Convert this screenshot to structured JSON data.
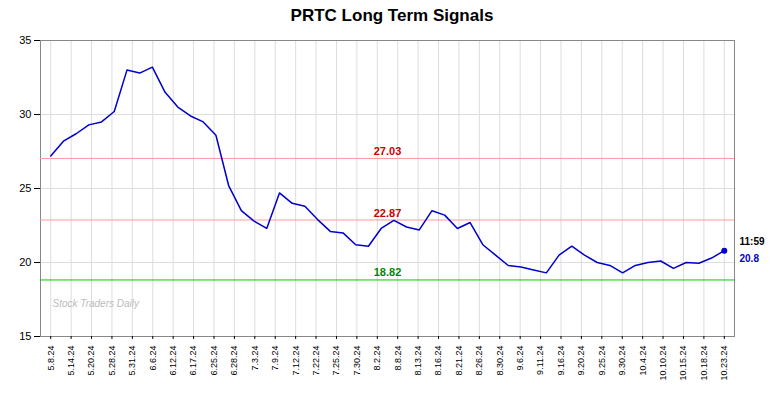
{
  "chart_data": {
    "type": "line",
    "title": "PRTC Long Term Signals",
    "color": "#0000cc",
    "marker": "o",
    "grid": true,
    "x": [
      0,
      0.622642,
      1.245283,
      1.867925,
      2.490566,
      3.113208,
      3.735849,
      4.358491,
      4.981132,
      5.603774,
      6.226415,
      6.849057,
      7.471698,
      8.09434,
      8.716981,
      9.339623,
      9.962264,
      10.584906,
      11.207547,
      11.830189,
      12.45283,
      13.075472,
      13.698113,
      14.320755,
      14.943396,
      15.566038,
      16.188679,
      16.811321,
      17.433962,
      18.056604,
      18.679245,
      19.301887,
      19.924528,
      20.54717,
      21.169811,
      21.792453,
      22.415094,
      23.037736,
      23.660377,
      24.283019,
      24.90566,
      25.528302,
      26.150943,
      26.773585,
      27.396226,
      28.018868,
      28.641509,
      29.264151,
      29.886792,
      30.509434,
      31.132075,
      31.754717,
      32.377358,
      33
    ],
    "values": [
      27.2,
      28.2,
      28.7,
      29.3,
      29.5,
      30.2,
      33.0,
      32.8,
      33.2,
      31.5,
      30.5,
      29.9,
      29.5,
      28.6,
      25.2,
      23.5,
      22.8,
      22.3,
      24.7,
      24.0,
      23.8,
      22.9,
      22.1,
      22.0,
      21.2,
      21.1,
      22.3,
      22.85,
      22.4,
      22.2,
      23.5,
      23.2,
      22.3,
      22.7,
      21.2,
      20.5,
      19.8,
      19.7,
      19.5,
      19.3,
      20.5,
      21.1,
      20.5,
      20.0,
      19.8,
      19.3,
      19.8,
      20.0,
      20.1,
      19.6,
      20.0,
      19.95,
      20.3,
      20.8
    ],
    "xlim": [
      -0.5,
      33.5
    ],
    "xticks": [
      {
        "value": 0,
        "label": "5.8.24"
      },
      {
        "value": 1,
        "label": "5.14.24"
      },
      {
        "value": 2,
        "label": "5.20.24"
      },
      {
        "value": 3,
        "label": "5.28.24"
      },
      {
        "value": 4,
        "label": "5.31.24"
      },
      {
        "value": 5,
        "label": "6.6.24"
      },
      {
        "value": 6,
        "label": "6.12.24"
      },
      {
        "value": 7,
        "label": "6.17.24"
      },
      {
        "value": 8,
        "label": "6.25.24"
      },
      {
        "value": 9,
        "label": "6.28.24"
      },
      {
        "value": 10,
        "label": "7.3.24"
      },
      {
        "value": 11,
        "label": "7.9.24"
      },
      {
        "value": 12,
        "label": "7.12.24"
      },
      {
        "value": 13,
        "label": "7.22.24"
      },
      {
        "value": 14,
        "label": "7.25.24"
      },
      {
        "value": 15,
        "label": "7.30.24"
      },
      {
        "value": 16,
        "label": "8.2.24"
      },
      {
        "value": 17,
        "label": "8.8.24"
      },
      {
        "value": 18,
        "label": "8.13.24"
      },
      {
        "value": 19,
        "label": "8.16.24"
      },
      {
        "value": 20,
        "label": "8.21.24"
      },
      {
        "value": 21,
        "label": "8.26.24"
      },
      {
        "value": 22,
        "label": "8.30.24"
      },
      {
        "value": 23,
        "label": "9.6.24"
      },
      {
        "value": 24,
        "label": "9.11.24"
      },
      {
        "value": 25,
        "label": "9.16.24"
      },
      {
        "value": 26,
        "label": "9.20.24"
      },
      {
        "value": 27,
        "label": "9.25.24"
      },
      {
        "value": 28,
        "label": "9.30.24"
      },
      {
        "value": 29,
        "label": "10.4.24"
      },
      {
        "value": 30,
        "label": "10.10.24"
      },
      {
        "value": 31,
        "label": "10.15.24"
      },
      {
        "value": 32,
        "label": "10.18.24"
      },
      {
        "value": 33,
        "label": "10.23.24"
      }
    ],
    "ylim": [
      15,
      35
    ],
    "yticks": [
      15,
      20,
      25,
      30,
      35
    ],
    "hlines": [
      {
        "value": 27.03,
        "label": "27.03",
        "color": "#ff9999",
        "label_color": "#cc0000"
      },
      {
        "value": 22.87,
        "label": "22.87",
        "color": "#ff9999",
        "label_color": "#cc0000"
      },
      {
        "value": 18.82,
        "label": "18.82",
        "color": "#00cc00",
        "label_color": "#008800"
      }
    ],
    "last_labels": [
      "11:59",
      "20.8"
    ],
    "watermark": "Stock Traders Daily"
  }
}
